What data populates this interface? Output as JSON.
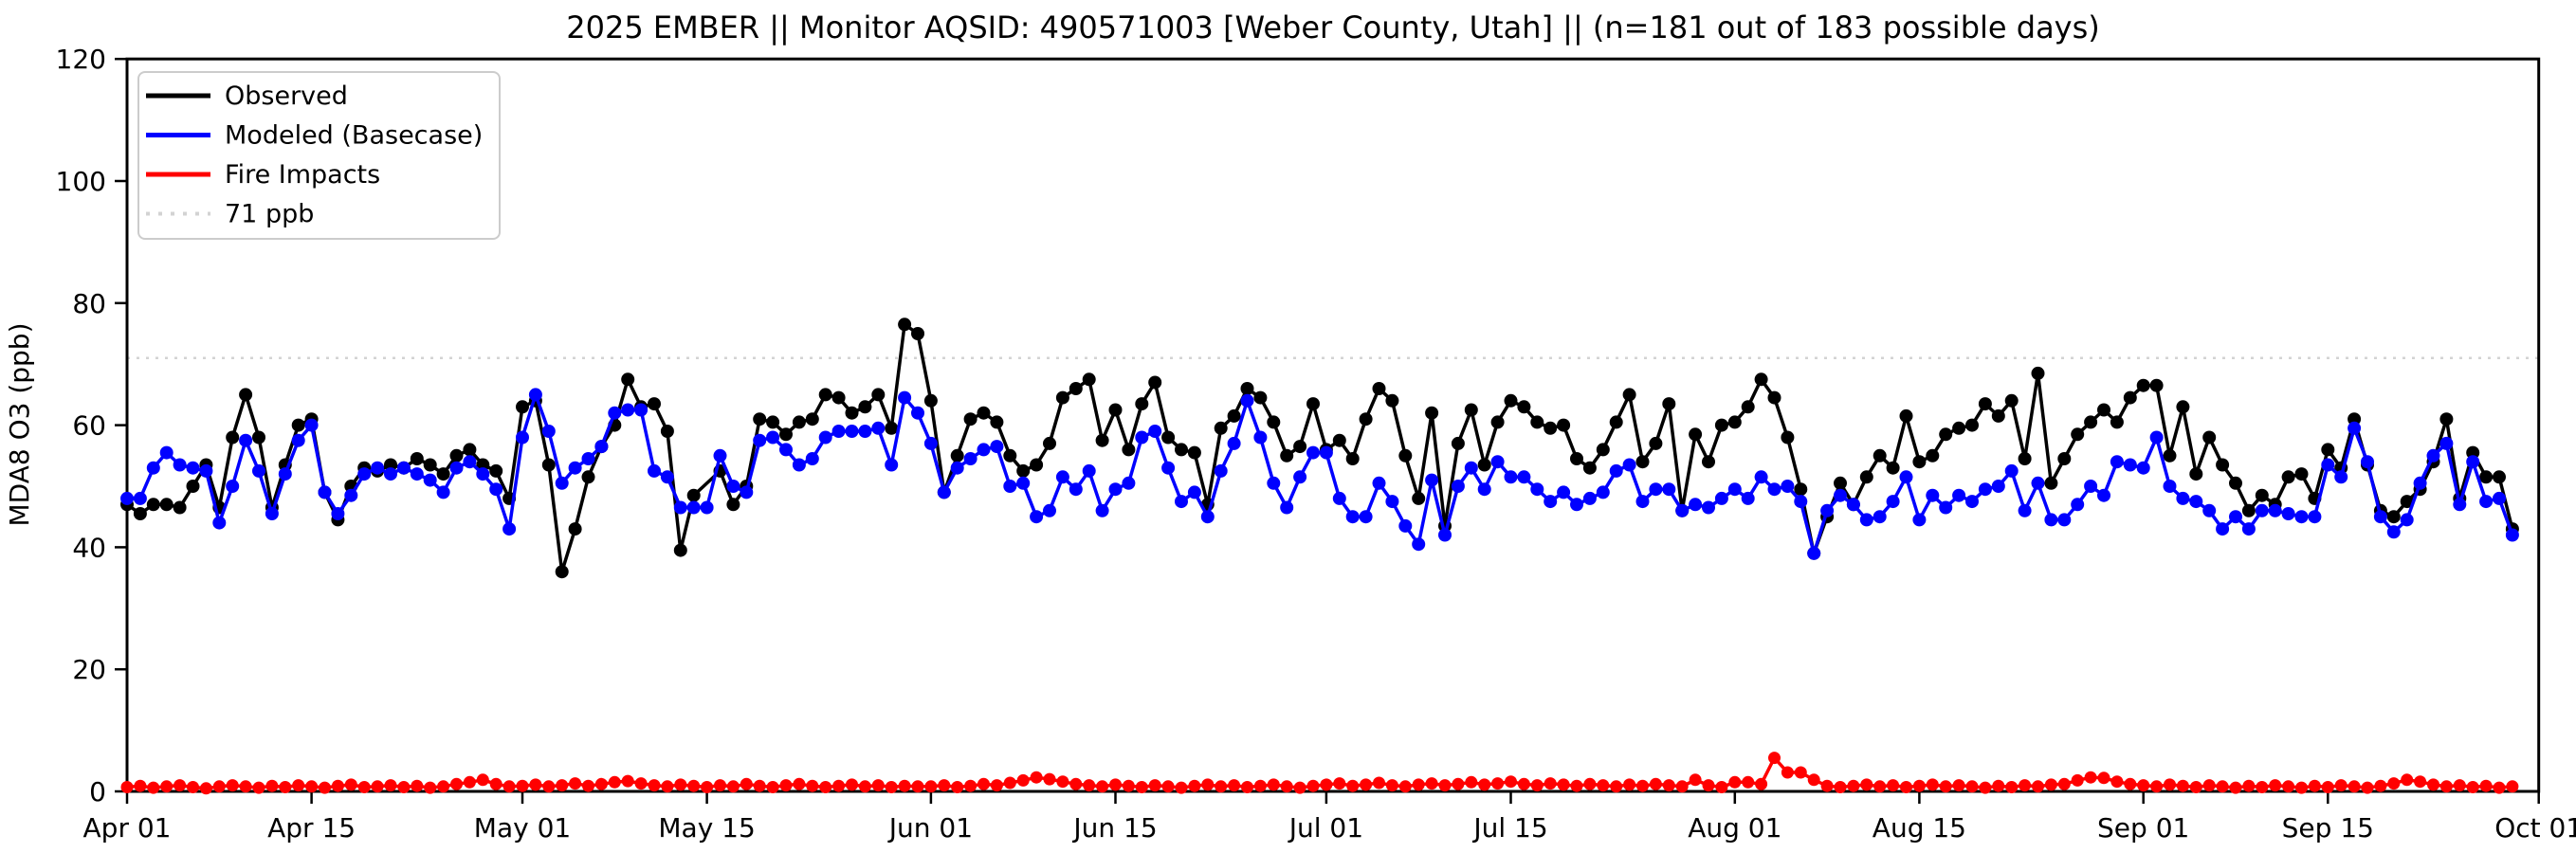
{
  "chart_data": {
    "type": "line",
    "title": "2025 EMBER || Monitor AQSID: 490571003 [Weber County, Utah] || (n=181 out of 183 possible days)",
    "ylabel": "MDA8 O3 (ppb)",
    "ylim": [
      0,
      120
    ],
    "y_ticks": [
      0,
      20,
      40,
      60,
      80,
      100,
      120
    ],
    "x_tick_labels": [
      "Apr 01",
      "Apr 15",
      "May 01",
      "May 15",
      "Jun 01",
      "Jun 15",
      "Jul 01",
      "Jul 15",
      "Aug 01",
      "Aug 15",
      "Sep 01",
      "Sep 15",
      "Oct 01"
    ],
    "x_tick_days": [
      0,
      14,
      30,
      44,
      61,
      75,
      91,
      105,
      122,
      136,
      153,
      167,
      183
    ],
    "x_range_days": 183,
    "x_start_label": "Apr 01",
    "x_end_label": "Oct 01",
    "grid": false,
    "legend_position": "upper left",
    "reference_line": {
      "label": "71 ppb",
      "value": 71,
      "color": "#d3d3d3"
    },
    "series": [
      {
        "name": "Observed",
        "color": "#000000",
        "values": [
          47,
          45.5,
          47,
          47,
          46.5,
          50,
          53.5,
          46.5,
          58,
          65,
          58,
          46.5,
          53.5,
          60,
          61,
          49,
          44.5,
          50,
          53,
          52.5,
          53.5,
          53,
          54.5,
          53.5,
          52,
          55,
          56,
          53.5,
          52.5,
          48,
          63,
          64,
          53.5,
          36,
          43,
          51.5,
          56.5,
          60,
          67.5,
          63,
          63.5,
          59,
          39.5,
          48.5,
          null,
          52.5,
          47,
          50,
          61,
          60.5,
          58.5,
          60.5,
          61,
          65,
          64.5,
          62,
          63,
          65,
          59.5,
          76.5,
          75,
          64,
          49,
          55,
          61,
          62,
          60.5,
          55,
          52.5,
          53.5,
          57,
          64.5,
          66,
          67.5,
          57.5,
          62.5,
          56,
          63.5,
          67,
          58,
          56,
          55.5,
          47,
          59.5,
          61.5,
          66,
          64.5,
          60.5,
          55,
          56.5,
          63.5,
          56,
          57.5,
          54.5,
          61,
          66,
          64,
          55,
          48,
          62,
          43.5,
          57,
          62.5,
          53.5,
          60.5,
          64,
          63,
          60.5,
          59.5,
          60,
          54.5,
          53,
          56,
          60.5,
          65,
          54,
          57,
          63.5,
          46,
          58.5,
          54,
          60,
          60.5,
          63,
          67.5,
          64.5,
          58,
          49.5,
          39,
          45,
          50.5,
          47,
          51.5,
          55,
          53,
          61.5,
          54,
          55,
          58.5,
          59.5,
          60,
          63.5,
          61.5,
          64,
          54.5,
          68.5,
          50.5,
          54.5,
          58.5,
          60.5,
          62.5,
          60.5,
          64.5,
          66.5,
          66.5,
          55,
          63,
          52,
          58,
          53.5,
          50.5,
          46,
          48.5,
          47,
          51.5,
          52,
          48,
          56,
          53,
          61,
          53.5,
          46,
          45,
          47.5,
          49.5,
          54,
          61,
          48,
          55.5,
          51.5,
          51.5,
          43
        ]
      },
      {
        "name": "Modeled (Basecase)",
        "color": "#0000ff",
        "values": [
          48,
          48,
          53,
          55.5,
          53.5,
          53,
          52.5,
          44,
          50,
          57.5,
          52.5,
          45.5,
          52,
          57.5,
          60,
          49,
          45.5,
          48.5,
          52,
          53,
          52,
          53,
          52,
          51,
          49,
          53,
          54,
          52,
          49.5,
          43,
          58,
          65,
          59,
          50.5,
          53,
          54.5,
          56.5,
          62,
          62.5,
          62.5,
          52.5,
          51.5,
          46.5,
          46.5,
          46.5,
          55,
          50,
          49,
          57.5,
          58,
          56,
          53.5,
          54.5,
          58,
          59,
          59,
          59,
          59.5,
          53.5,
          64.5,
          62,
          57,
          49,
          53,
          54.5,
          56,
          56.5,
          50,
          50.5,
          45,
          46,
          51.5,
          49.5,
          52.5,
          46,
          49.5,
          50.5,
          58,
          59,
          53,
          47.5,
          49,
          45,
          52.5,
          57,
          64,
          58,
          50.5,
          46.5,
          51.5,
          55.5,
          55.5,
          48,
          45,
          45,
          50.5,
          47.5,
          43.5,
          40.5,
          51,
          42,
          50,
          53,
          49.5,
          54,
          51.5,
          51.5,
          49.5,
          47.5,
          49,
          47,
          48,
          49,
          52.5,
          53.5,
          47.5,
          49.5,
          49.5,
          46,
          47,
          46.5,
          48,
          49.5,
          48,
          51.5,
          49.5,
          50,
          47.5,
          39,
          46,
          48.5,
          47,
          44.5,
          45,
          47.5,
          51.5,
          44.5,
          48.5,
          46.5,
          48.5,
          47.5,
          49.5,
          50,
          52.5,
          46,
          50.5,
          44.5,
          44.5,
          47,
          50,
          48.5,
          54,
          53.5,
          53,
          58,
          50,
          48,
          47.5,
          46,
          43,
          45,
          43,
          46,
          46,
          45.5,
          45,
          45,
          53.5,
          51.5,
          59.5,
          54,
          45,
          42.5,
          44.5,
          50.5,
          55,
          57,
          47,
          54,
          47.5,
          48,
          42
        ]
      },
      {
        "name": "Fire Impacts",
        "color": "#ff0000",
        "values": [
          0.7,
          0.9,
          0.6,
          0.8,
          1.0,
          0.7,
          0.5,
          0.8,
          1.0,
          0.8,
          0.6,
          0.9,
          0.7,
          1.0,
          0.8,
          0.6,
          0.9,
          1.1,
          0.7,
          0.8,
          1.0,
          0.7,
          0.9,
          0.6,
          0.8,
          1.2,
          1.5,
          1.9,
          1.2,
          0.8,
          0.9,
          1.1,
          0.8,
          1.0,
          1.3,
          0.9,
          1.2,
          1.5,
          1.7,
          1.3,
          1.0,
          0.8,
          1.1,
          0.9,
          0.7,
          1.0,
          0.8,
          1.2,
          0.9,
          0.7,
          1.0,
          1.2,
          0.9,
          0.7,
          0.9,
          1.1,
          0.8,
          1.0,
          0.7,
          0.9,
          0.8,
          0.8,
          1.0,
          0.7,
          0.9,
          1.2,
          1.0,
          1.4,
          1.8,
          2.3,
          2.0,
          1.6,
          1.2,
          1.0,
          0.8,
          1.1,
          0.9,
          0.7,
          1.0,
          0.8,
          0.6,
          0.9,
          1.1,
          0.8,
          1.0,
          0.7,
          0.9,
          1.1,
          0.8,
          0.6,
          0.9,
          1.1,
          1.3,
          0.9,
          1.1,
          1.4,
          1.0,
          0.8,
          1.1,
          1.3,
          1.0,
          1.2,
          1.5,
          1.1,
          1.3,
          1.6,
          1.2,
          1.0,
          1.3,
          1.1,
          0.9,
          1.2,
          1.0,
          0.8,
          1.1,
          0.9,
          1.2,
          1.0,
          0.8,
          1.9,
          1.0,
          0.7,
          1.5,
          1.5,
          1.2,
          5.5,
          3.1,
          3.1,
          1.9,
          0.9,
          0.7,
          0.9,
          1.1,
          0.8,
          1.0,
          0.7,
          0.9,
          1.1,
          0.8,
          1.0,
          0.8,
          0.6,
          0.9,
          0.7,
          1.0,
          0.8,
          1.1,
          1.2,
          1.8,
          2.3,
          2.2,
          1.6,
          1.2,
          1.0,
          0.8,
          1.1,
          0.9,
          0.7,
          1.0,
          0.8,
          0.6,
          0.9,
          0.7,
          1.0,
          0.8,
          0.6,
          0.9,
          0.7,
          1.0,
          0.8,
          0.6,
          0.9,
          1.3,
          1.9,
          1.6,
          1.1,
          0.8,
          1.0,
          0.7,
          0.9,
          0.6,
          0.8
        ]
      }
    ]
  }
}
